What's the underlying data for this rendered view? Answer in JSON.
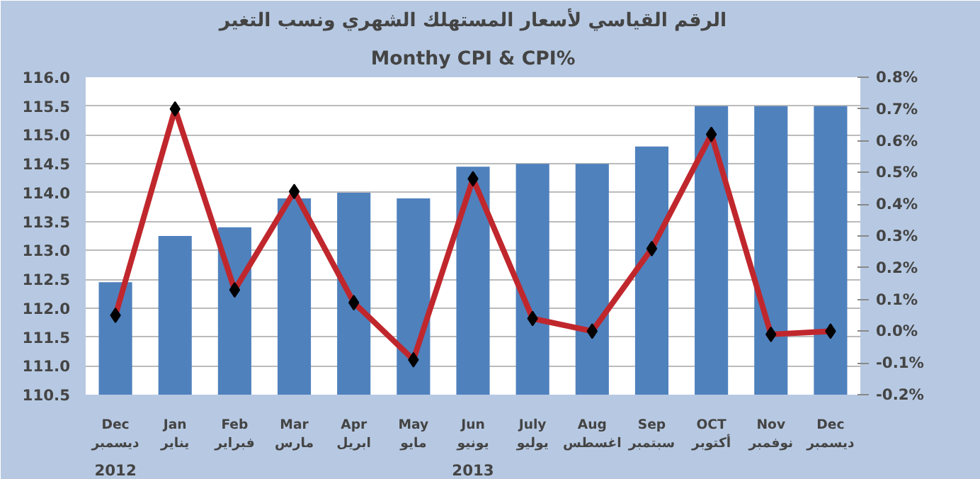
{
  "chart_data": {
    "type": "bar",
    "title": "الرقم القياسي لأسعار المستهلك الشهري ونسب التغير",
    "subtitle": "Monthy CPI & CPI%",
    "categories": [
      "Dec\nديسمبر",
      "Jan\nيناير",
      "Feb\nفبراير",
      "Mar\nمارس",
      "Apr\nابريل",
      "May\nمايو",
      "Jun\nيونيو",
      "July\nيوليو",
      "Aug\nاغسطس",
      "Sep\nسبتمبر",
      "OCT\nأكتوبر",
      "Nov\nنوفمبر",
      "Dec\nديسمبر"
    ],
    "series": [
      {
        "color": "#4f81bd",
        "values": [
          112.45,
          113.25,
          113.4,
          113.9,
          114.0,
          113.9,
          114.45,
          114.5,
          114.5,
          114.8,
          115.5,
          115.5,
          115.5
        ]
      },
      {
        "type": "line",
        "axis": "y2",
        "color": "#c0272d",
        "marker": "diamond",
        "values": [
          0.05,
          0.7,
          0.13,
          0.44,
          0.09,
          -0.09,
          0.48,
          0.04,
          0.0,
          0.26,
          0.62,
          -0.01,
          0.0
        ]
      }
    ],
    "ylim": [
      110.5,
      116.0
    ],
    "yticks": [
      {
        "value": 110.5,
        "label": "110.5"
      },
      {
        "value": 111,
        "label": "111.0"
      },
      {
        "value": 111.5,
        "label": "111.5"
      },
      {
        "value": 112,
        "label": "112.0"
      },
      {
        "value": 112.5,
        "label": "112.5"
      },
      {
        "value": 113,
        "label": "113.0"
      },
      {
        "value": 113.5,
        "label": "113.5"
      },
      {
        "value": 114,
        "label": "114.0"
      },
      {
        "value": 114.5,
        "label": "114.5"
      },
      {
        "value": 115,
        "label": "115.0"
      },
      {
        "value": 115.5,
        "label": "115.5"
      },
      {
        "value": 116,
        "label": "116.0"
      }
    ],
    "y2lim": [
      -0.2,
      0.8
    ],
    "y2ticks": [
      {
        "value": -0.2,
        "label": "-0.2%"
      },
      {
        "value": -0.1,
        "label": "-0.1%"
      },
      {
        "value": 0,
        "label": "0.0%"
      },
      {
        "value": 0.1,
        "label": "0.1%"
      },
      {
        "value": 0.2,
        "label": "0.2%"
      },
      {
        "value": 0.3,
        "label": "0.3%"
      },
      {
        "value": 0.4,
        "label": "0.4%"
      },
      {
        "value": 0.5,
        "label": "0.5%"
      },
      {
        "value": 0.6,
        "label": "0.6%"
      },
      {
        "value": 0.7,
        "label": "0.7%"
      },
      {
        "value": 0.8,
        "label": "0.8%"
      }
    ],
    "grid": "y",
    "annotations": [
      "2012",
      "2013"
    ]
  }
}
